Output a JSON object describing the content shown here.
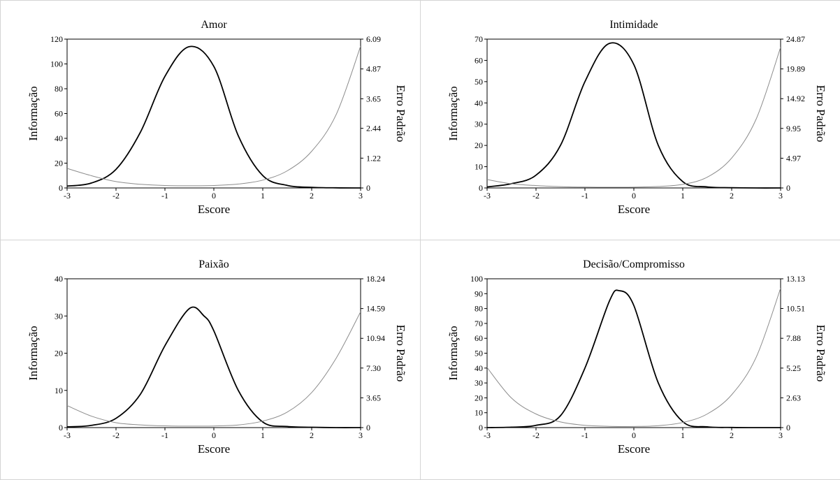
{
  "chart_data": [
    {
      "type": "line",
      "title": "Amor",
      "xlabel": "Escore",
      "ylabel": "Informação",
      "y2label": "Erro Padrão",
      "xlim": [
        -3,
        3
      ],
      "xticks": [
        "-3",
        "-2",
        "-1",
        "0",
        "1",
        "2",
        "3"
      ],
      "ylim": [
        0,
        120
      ],
      "yticks": [
        "0",
        "20",
        "40",
        "60",
        "80",
        "100",
        "120"
      ],
      "y2lim": [
        0,
        6.09
      ],
      "y2ticks": [
        "0",
        "1.22",
        "2.44",
        "3.65",
        "4.87",
        "6.09"
      ],
      "series": [
        {
          "role": "information",
          "axis": "left",
          "color": "#000000",
          "x": [
            -3,
            -2.5,
            -2,
            -1.5,
            -1,
            -0.5,
            0,
            0.5,
            1,
            1.5,
            2,
            2.5,
            3
          ],
          "values": [
            1.5,
            4,
            15,
            45,
            90,
            114,
            98,
            42,
            10,
            2,
            0.5,
            0.1,
            0
          ]
        },
        {
          "role": "standard-error",
          "axis": "right",
          "color": "#8c8c8c",
          "x": [
            -3,
            -2.5,
            -2,
            -1.5,
            -1,
            -0.5,
            0,
            0.5,
            1,
            1.5,
            2,
            2.5,
            3
          ],
          "values": [
            0.8,
            0.5,
            0.26,
            0.15,
            0.1,
            0.09,
            0.1,
            0.16,
            0.32,
            0.7,
            1.5,
            3.0,
            5.8
          ]
        }
      ]
    },
    {
      "type": "line",
      "title": "Intimidade",
      "xlabel": "Escore",
      "ylabel": "Informação",
      "y2label": "Erro Padrão",
      "xlim": [
        -3,
        3
      ],
      "xticks": [
        "-3",
        "-2",
        "-1",
        "0",
        "1",
        "2",
        "3"
      ],
      "ylim": [
        0,
        70
      ],
      "yticks": [
        "0",
        "10",
        "20",
        "30",
        "40",
        "50",
        "60",
        "70"
      ],
      "y2lim": [
        0,
        24.87
      ],
      "y2ticks": [
        "0",
        "4.97",
        "9.95",
        "14.92",
        "19.89",
        "24.87"
      ],
      "series": [
        {
          "role": "information",
          "axis": "left",
          "color": "#000000",
          "x": [
            -3,
            -2.5,
            -2,
            -1.5,
            -1,
            -0.5,
            0,
            0.5,
            1,
            1.5,
            2,
            2.5,
            3
          ],
          "values": [
            0.5,
            2,
            6,
            20,
            50,
            68,
            58,
            20,
            3,
            0.5,
            0.1,
            0,
            0
          ]
        },
        {
          "role": "standard-error",
          "axis": "right",
          "color": "#8c8c8c",
          "x": [
            -3,
            -2.5,
            -2,
            -1.5,
            -1,
            -0.5,
            0,
            0.5,
            1,
            1.5,
            2,
            2.5,
            3
          ],
          "values": [
            1.4,
            0.7,
            0.4,
            0.22,
            0.14,
            0.12,
            0.13,
            0.25,
            0.6,
            1.8,
            5.0,
            11.5,
            23.5
          ]
        }
      ]
    },
    {
      "type": "line",
      "title": "Paixão",
      "xlabel": "Escore",
      "ylabel": "Informação",
      "y2label": "Erro Padrão",
      "xlim": [
        -3,
        3
      ],
      "xticks": [
        "-3",
        "-2",
        "-1",
        "0",
        "1",
        "2",
        "3"
      ],
      "ylim": [
        0,
        40
      ],
      "yticks": [
        "0",
        "10",
        "20",
        "30",
        "40"
      ],
      "y2lim": [
        0,
        18.24
      ],
      "y2ticks": [
        "0",
        "3.65",
        "7.30",
        "10.94",
        "14.59",
        "18.24"
      ],
      "series": [
        {
          "role": "information",
          "axis": "left",
          "color": "#000000",
          "x": [
            -3,
            -2.5,
            -2,
            -1.5,
            -1,
            -0.5,
            -0.2,
            0,
            0.5,
            1,
            1.5,
            2,
            2.5,
            3
          ],
          "values": [
            0.2,
            0.6,
            2.5,
            9,
            22,
            32,
            30,
            26,
            10,
            1.5,
            0.3,
            0.1,
            0,
            0
          ]
        },
        {
          "role": "standard-error",
          "axis": "right",
          "color": "#8c8c8c",
          "x": [
            -3,
            -2.5,
            -2,
            -1.5,
            -1,
            -0.5,
            0,
            0.5,
            1,
            1.5,
            2,
            2.5,
            3
          ],
          "values": [
            2.7,
            1.4,
            0.6,
            0.33,
            0.21,
            0.18,
            0.2,
            0.32,
            0.8,
            1.9,
            4.3,
            8.5,
            14.2
          ]
        }
      ]
    },
    {
      "type": "line",
      "title": "Decisão/Compromisso",
      "xlabel": "Escore",
      "ylabel": "Informação",
      "y2label": "Erro Padrão",
      "xlim": [
        -3,
        3
      ],
      "xticks": [
        "-3",
        "-2",
        "-1",
        "0",
        "1",
        "2",
        "3"
      ],
      "ylim": [
        0,
        100
      ],
      "yticks": [
        "0",
        "10",
        "20",
        "30",
        "40",
        "50",
        "60",
        "70",
        "80",
        "90",
        "100"
      ],
      "y2lim": [
        0,
        13.13
      ],
      "y2ticks": [
        "0",
        "2.63",
        "5.25",
        "7.88",
        "10.51",
        "13.13"
      ],
      "series": [
        {
          "role": "information",
          "axis": "left",
          "color": "#000000",
          "x": [
            -3,
            -2.5,
            -2,
            -1.5,
            -1,
            -0.5,
            -0.3,
            0,
            0.5,
            1,
            1.5,
            2,
            2.5,
            3
          ],
          "values": [
            0,
            0.3,
            1.5,
            8,
            40,
            85,
            92,
            82,
            30,
            4,
            0.5,
            0.1,
            0,
            0
          ]
        },
        {
          "role": "standard-error",
          "axis": "right",
          "color": "#8c8c8c",
          "x": [
            -3,
            -2.5,
            -2,
            -1.5,
            -1,
            -0.5,
            0,
            0.5,
            1,
            1.5,
            2,
            2.5,
            3
          ],
          "values": [
            5.3,
            2.6,
            1.2,
            0.5,
            0.2,
            0.11,
            0.1,
            0.17,
            0.45,
            1.2,
            2.9,
            6.2,
            12.3
          ]
        }
      ]
    }
  ]
}
